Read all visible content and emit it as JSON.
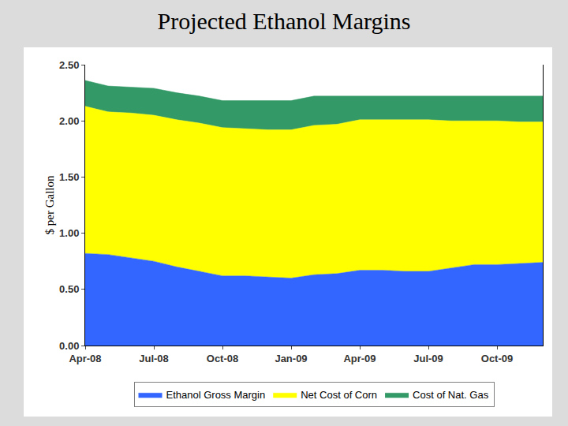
{
  "chart_data": {
    "type": "area",
    "title": "Projected Ethanol Margins",
    "y_label": "$ per Gallon",
    "stacked": true,
    "grid": false,
    "legend": "bottom",
    "categories": [
      "Apr-08",
      null,
      null,
      "Jul-08",
      null,
      null,
      "Oct-08",
      null,
      null,
      "Jan-09",
      null,
      null,
      "Apr-09",
      null,
      null,
      "Jul-09",
      null,
      null,
      "Oct-09",
      null,
      null
    ],
    "series": [
      {
        "name": "Ethanol Gross Margin",
        "color": "#3366ff",
        "values": [
          0.82,
          0.81,
          0.78,
          0.75,
          0.7,
          0.66,
          0.62,
          0.62,
          0.61,
          0.6,
          0.63,
          0.64,
          0.67,
          0.67,
          0.66,
          0.66,
          0.69,
          0.72,
          0.72,
          0.73,
          0.74
        ]
      },
      {
        "name": "Net Cost of Corn",
        "color": "#ffff00",
        "values": [
          1.31,
          1.27,
          1.29,
          1.3,
          1.31,
          1.32,
          1.32,
          1.31,
          1.31,
          1.32,
          1.33,
          1.33,
          1.34,
          1.34,
          1.35,
          1.35,
          1.31,
          1.28,
          1.28,
          1.26,
          1.25
        ]
      },
      {
        "name": "Cost of Nat. Gas",
        "color": "#339966",
        "values": [
          0.23,
          0.23,
          0.23,
          0.24,
          0.24,
          0.24,
          0.24,
          0.25,
          0.26,
          0.26,
          0.26,
          0.25,
          0.21,
          0.21,
          0.21,
          0.21,
          0.22,
          0.22,
          0.22,
          0.23,
          0.23
        ]
      }
    ],
    "ylim": [
      0,
      2.5
    ],
    "yticks": [
      {
        "value": 0,
        "label": "0.00"
      },
      {
        "value": 0.5,
        "label": "0.50"
      },
      {
        "value": 1,
        "label": "1.00"
      },
      {
        "value": 1.5,
        "label": "1.50"
      },
      {
        "value": 2,
        "label": "2.00"
      },
      {
        "value": 2.5,
        "label": "2.50"
      }
    ]
  }
}
